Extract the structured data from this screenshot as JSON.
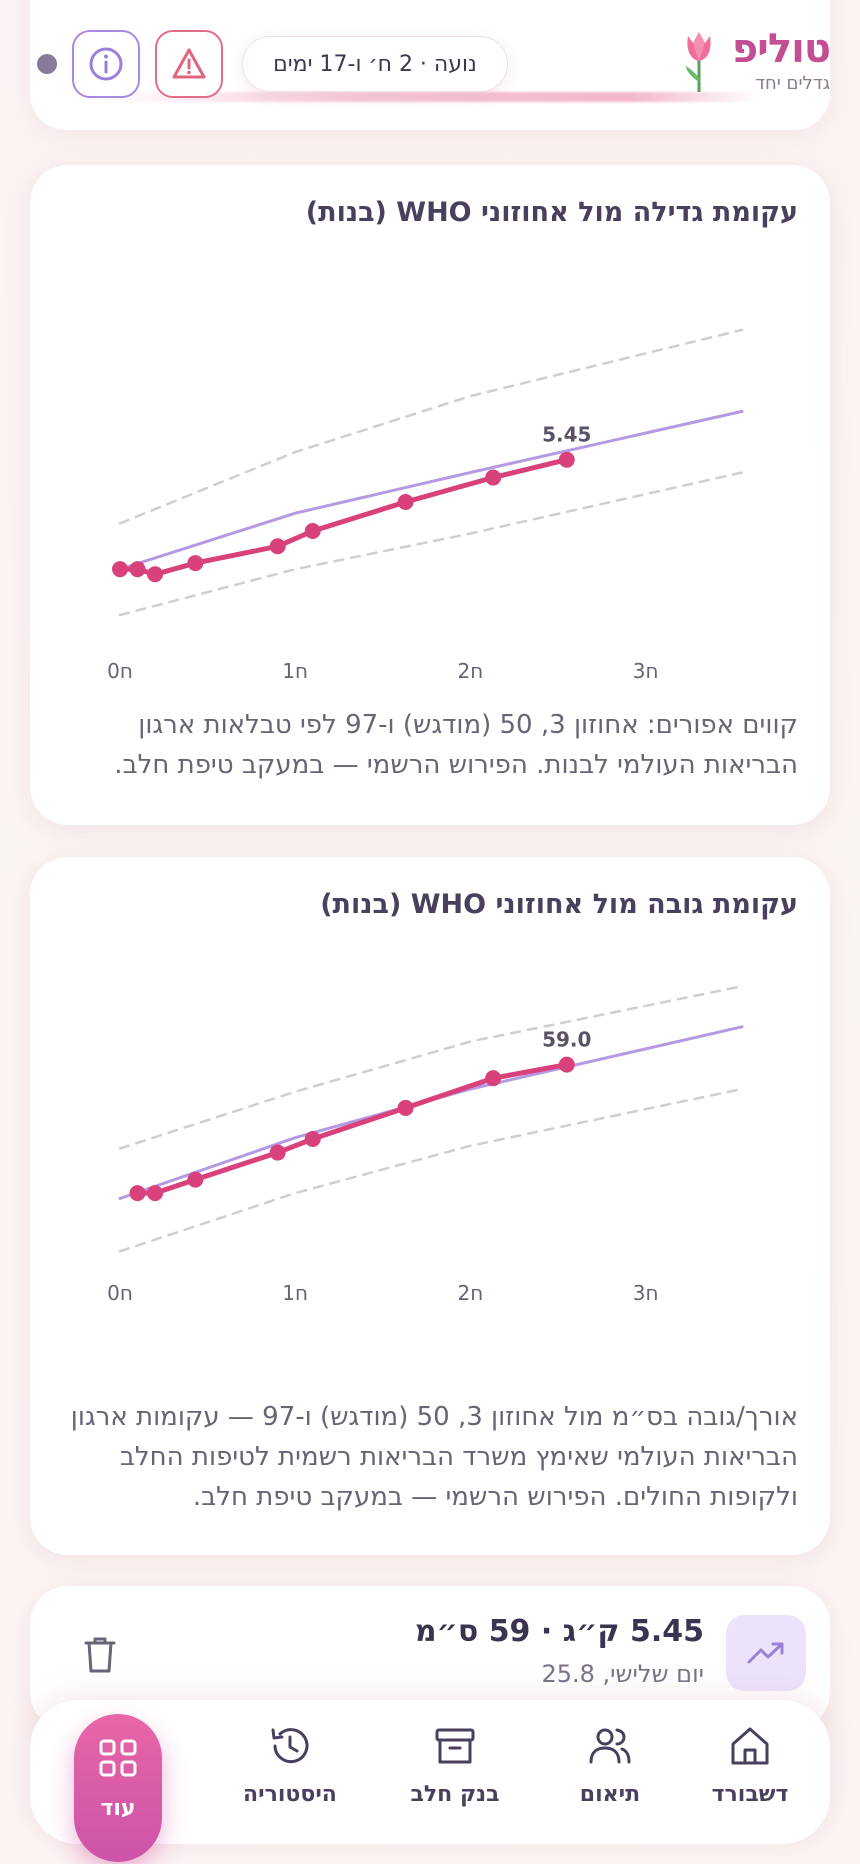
{
  "header": {
    "brand_name": "טוליפ",
    "brand_tagline": "גדלים יחד",
    "age_pill": "נועה · 2 ח׳ ו-17 ימים"
  },
  "weight_card": {
    "title": "עקומת גדילה מול אחוזוני WHO (בנות)",
    "note": "קווים אפורים: אחוזון 3, 50 (מודגש) ו-97 לפי טבלאות ארגון הבריאות העולמי לבנות. הפירוש הרשמי — במעקב טיפת חלב."
  },
  "height_card": {
    "title": "עקומת גובה מול אחוזוני WHO (בנות)",
    "note": "אורך/גובה בס״מ מול אחוזון 3, 50 (מודגש) ו-97 — עקומות ארגון הבריאות העולמי שאימץ משרד הבריאות רשמית לטיפות החלב ולקופות החולים. הפירוש הרשמי — במעקב טיפת חלב."
  },
  "chart_data": [
    {
      "type": "line",
      "x_ticks": [
        "0ח",
        "1ח",
        "2ח",
        "3ח"
      ],
      "xlim": [
        0,
        3.55
      ],
      "ylim": [
        2.4,
        7.9
      ],
      "colors": {
        "measured": "#d9417c",
        "p50": "#b49ae3",
        "p3_p97": "#cfcfcf"
      },
      "series": [
        {
          "key": "p3",
          "style": "dashed",
          "x": [
            0,
            1,
            2,
            3.55
          ],
          "y": [
            2.4,
            3.3,
            4.0,
            5.2
          ]
        },
        {
          "key": "p50",
          "style": "solid",
          "x": [
            0,
            1,
            2,
            3.55
          ],
          "y": [
            3.3,
            4.4,
            5.2,
            6.4
          ]
        },
        {
          "key": "p97",
          "style": "dashed",
          "x": [
            0,
            1,
            2,
            3.55
          ],
          "y": [
            4.2,
            5.6,
            6.7,
            8.0
          ]
        },
        {
          "key": "measured",
          "style": "solid",
          "x": [
            0.0,
            0.1,
            0.2,
            0.43,
            0.9,
            1.1,
            1.63,
            2.13,
            2.55
          ],
          "y": [
            3.3,
            3.3,
            3.2,
            3.42,
            3.75,
            4.05,
            4.62,
            5.1,
            5.45
          ]
        }
      ],
      "last_label": "5.45"
    },
    {
      "type": "line",
      "x_ticks": [
        "0ח",
        "1ח",
        "2ח",
        "3ח"
      ],
      "xlim": [
        0,
        3.55
      ],
      "ylim": [
        45,
        64
      ],
      "colors": {
        "measured": "#d9417c",
        "p50": "#b49ae3",
        "p3_p97": "#cfcfcf"
      },
      "series": [
        {
          "key": "p3",
          "style": "dashed",
          "x": [
            0,
            1,
            2,
            3.55
          ],
          "y": [
            45.2,
            49.5,
            53.0,
            57.2
          ]
        },
        {
          "key": "p97",
          "style": "dashed",
          "x": [
            0,
            1,
            2,
            3.55
          ],
          "y": [
            52.8,
            57.0,
            60.7,
            64.8
          ]
        },
        {
          "key": "p50",
          "style": "solid",
          "x": [
            0,
            1,
            2,
            3.55
          ],
          "y": [
            49.1,
            53.6,
            57.2,
            61.8
          ]
        },
        {
          "key": "measured",
          "style": "solid",
          "x": [
            0.1,
            0.2,
            0.43,
            0.9,
            1.1,
            1.63,
            2.13,
            2.55
          ],
          "y": [
            49.5,
            49.5,
            50.5,
            52.5,
            53.5,
            55.8,
            58.0,
            59.0
          ]
        }
      ],
      "last_label": "59.0"
    }
  ],
  "entry": {
    "main": "5.45 ק״ג · 59 ס״מ",
    "sub": "יום שלישי, 25.8"
  },
  "nav": {
    "dashboard": "דשבורד",
    "coordination": "תיאום",
    "milk_bank": "בנק חלב",
    "history": "היסטוריה",
    "more": "עוד"
  }
}
